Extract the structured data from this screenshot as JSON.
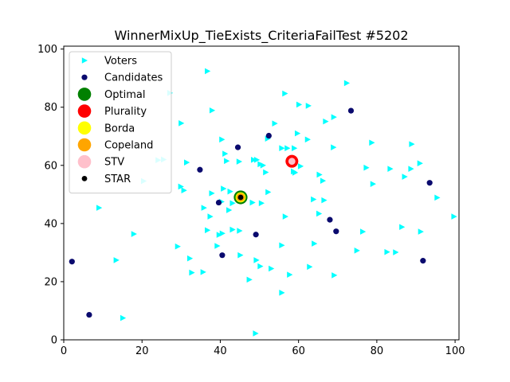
{
  "chart_data": {
    "type": "scatter",
    "title": "WinnerMixUp_TieExists_CriteriaFailTest #5202",
    "xlabel": "",
    "ylabel": "",
    "xlim": [
      0,
      101
    ],
    "ylim": [
      0,
      101
    ],
    "xticks": [
      0,
      20,
      40,
      60,
      80,
      100
    ],
    "yticks": [
      0,
      20,
      40,
      60,
      80,
      100
    ],
    "grid": false,
    "legend_position": "top-left",
    "series": [
      {
        "name": "Voters",
        "marker": "triangle-right",
        "color": "#00ffff",
        "points": [
          [
            36.7,
            92.4
          ],
          [
            72.3,
            88.3
          ],
          [
            27.1,
            84.9
          ],
          [
            56.5,
            84.7
          ],
          [
            60.1,
            80.9
          ],
          [
            37.9,
            78.9
          ],
          [
            69.0,
            76.6
          ],
          [
            66.9,
            75.1
          ],
          [
            30.0,
            74.5
          ],
          [
            53.9,
            74.4
          ],
          [
            59.7,
            71.0
          ],
          [
            40.4,
            68.9
          ],
          [
            62.3,
            68.9
          ],
          [
            78.7,
            67.8
          ],
          [
            88.9,
            67.3
          ],
          [
            68.9,
            66.2
          ],
          [
            55.7,
            65.9
          ],
          [
            57.1,
            65.9
          ],
          [
            58.9,
            65.9
          ],
          [
            41.2,
            64.0
          ],
          [
            24.1,
            61.8
          ],
          [
            41.6,
            61.5
          ],
          [
            44.8,
            61.3
          ],
          [
            48.5,
            61.9
          ],
          [
            49.3,
            61.9
          ],
          [
            31.4,
            61.0
          ],
          [
            50.2,
            60.4
          ],
          [
            50.9,
            60.0
          ],
          [
            60.5,
            59.7
          ],
          [
            77.3,
            59.2
          ],
          [
            83.4,
            58.8
          ],
          [
            88.7,
            58.8
          ],
          [
            91.0,
            60.7
          ],
          [
            51.6,
            57.6
          ],
          [
            58.7,
            57.9
          ],
          [
            59.1,
            57.5
          ],
          [
            65.3,
            56.8
          ],
          [
            87.1,
            56.1
          ],
          [
            66.2,
            54.7
          ],
          [
            20.4,
            54.6
          ],
          [
            79.0,
            53.6
          ],
          [
            29.9,
            52.7
          ],
          [
            40.8,
            52.0
          ],
          [
            30.7,
            51.4
          ],
          [
            42.5,
            51.0
          ],
          [
            52.2,
            50.8
          ],
          [
            37.8,
            50.4
          ],
          [
            95.4,
            48.9
          ],
          [
            63.8,
            48.3
          ],
          [
            66.5,
            48.0
          ],
          [
            40.3,
            47.5
          ],
          [
            43.1,
            47.0
          ],
          [
            48.2,
            47.2
          ],
          [
            50.5,
            47.0
          ],
          [
            35.8,
            45.4
          ],
          [
            9.0,
            45.4
          ],
          [
            42.2,
            44.6
          ],
          [
            65.2,
            43.4
          ],
          [
            56.6,
            42.4
          ],
          [
            37.4,
            42.4
          ],
          [
            99.7,
            42.4
          ],
          [
            86.4,
            38.8
          ],
          [
            36.7,
            37.7
          ],
          [
            43.1,
            37.9
          ],
          [
            44.9,
            37.5
          ],
          [
            76.4,
            37.2
          ],
          [
            91.2,
            37.2
          ],
          [
            40.5,
            36.6
          ],
          [
            39.7,
            36.1
          ],
          [
            17.9,
            36.4
          ],
          [
            64.0,
            33.1
          ],
          [
            55.7,
            32.5
          ],
          [
            29.1,
            32.1
          ],
          [
            39.2,
            32.3
          ],
          [
            74.9,
            30.7
          ],
          [
            82.6,
            30.2
          ],
          [
            84.8,
            30.1
          ],
          [
            45.1,
            29.1
          ],
          [
            13.4,
            27.4
          ],
          [
            32.2,
            28.0
          ],
          [
            49.2,
            27.4
          ],
          [
            50.2,
            25.3
          ],
          [
            53.0,
            24.5
          ],
          [
            62.8,
            25.1
          ],
          [
            32.7,
            23.1
          ],
          [
            35.6,
            23.3
          ],
          [
            57.7,
            22.4
          ],
          [
            69.1,
            22.2
          ],
          [
            47.4,
            20.7
          ],
          [
            55.7,
            16.2
          ],
          [
            15.1,
            7.5
          ],
          [
            49.0,
            2.2
          ],
          [
            52.1,
            69.2
          ],
          [
            62.5,
            80.5
          ],
          [
            25.5,
            62.0
          ]
        ]
      },
      {
        "name": "Candidates",
        "marker": "circle",
        "color": "#0a0a6e",
        "points": [
          [
            73.4,
            78.8
          ],
          [
            52.4,
            70.2
          ],
          [
            44.5,
            66.2
          ],
          [
            93.5,
            54.0
          ],
          [
            34.8,
            58.5
          ],
          [
            39.6,
            47.2
          ],
          [
            68.0,
            41.3
          ],
          [
            69.6,
            37.3
          ],
          [
            49.1,
            36.2
          ],
          [
            40.5,
            29.1
          ],
          [
            2.1,
            26.9
          ],
          [
            91.8,
            27.2
          ],
          [
            6.5,
            8.6
          ]
        ]
      }
    ],
    "winners": [
      {
        "name": "Optimal",
        "color": "#008000",
        "point": [
          45.2,
          49.0
        ]
      },
      {
        "name": "Plurality",
        "color": "#ff0000",
        "point": [
          58.3,
          61.4
        ]
      },
      {
        "name": "Borda",
        "color": "#ffff00",
        "point": [
          45.2,
          49.0
        ]
      },
      {
        "name": "Copeland",
        "color": "#ffa500",
        "point": [
          45.2,
          49.0
        ]
      },
      {
        "name": "STV",
        "color": "#ffc0cb",
        "point": [
          58.3,
          61.4
        ]
      },
      {
        "name": "STAR",
        "color": "#000000",
        "point": [
          45.2,
          49.0
        ]
      }
    ],
    "legend": [
      "Voters",
      "Candidates",
      "Optimal",
      "Plurality",
      "Borda",
      "Copeland",
      "STV",
      "STAR"
    ]
  }
}
